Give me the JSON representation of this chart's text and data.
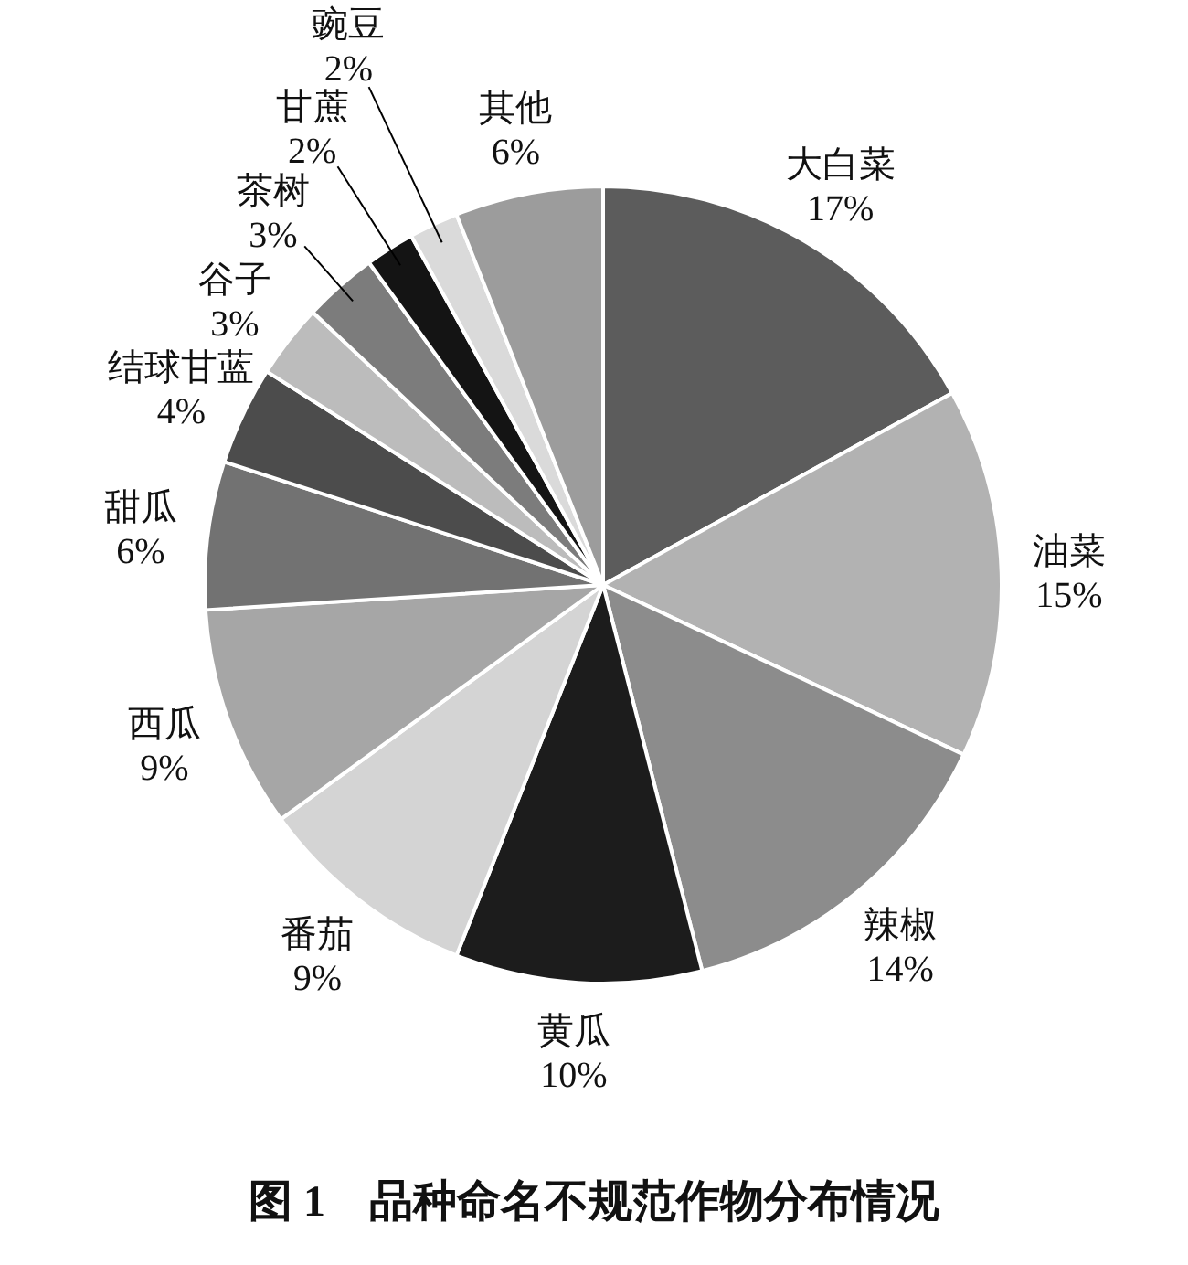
{
  "chart_data": {
    "type": "pie",
    "title": "图 1　品种命名不规范作物分布情况",
    "categories": [
      "大白菜",
      "油菜",
      "辣椒",
      "黄瓜",
      "番茄",
      "西瓜",
      "甜瓜",
      "结球甘蓝",
      "谷子",
      "茶树",
      "甘蔗",
      "豌豆",
      "其他"
    ],
    "values": [
      17,
      15,
      14,
      10,
      9,
      9,
      6,
      4,
      3,
      3,
      2,
      2,
      6
    ],
    "colors": [
      "#5c5c5c",
      "#b2b2b2",
      "#8c8c8c",
      "#1c1c1c",
      "#d4d4d4",
      "#a6a6a6",
      "#727272",
      "#4c4c4c",
      "#bcbcbc",
      "#7c7c7c",
      "#141414",
      "#dadada",
      "#9c9c9c"
    ],
    "value_labels": [
      "17%",
      "15%",
      "14%",
      "10%",
      "9%",
      "9%",
      "6%",
      "4%",
      "3%",
      "3%",
      "2%",
      "2%",
      "6%"
    ],
    "legend": false
  }
}
